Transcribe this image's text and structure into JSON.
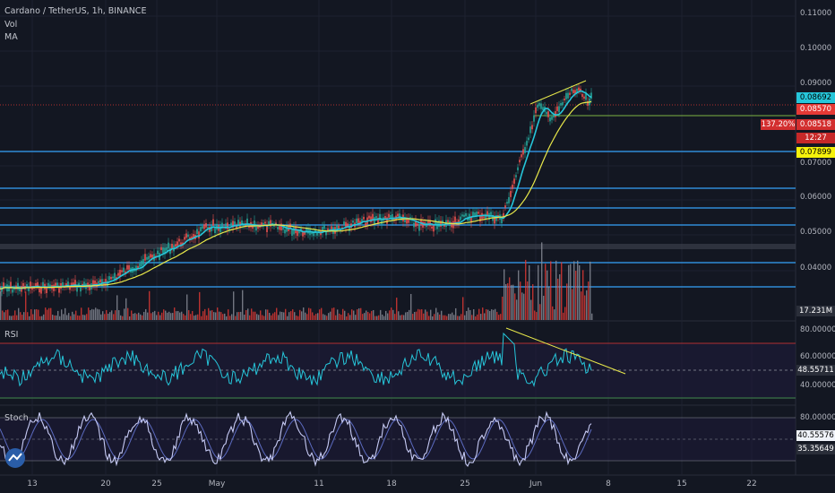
{
  "header": {
    "title": "Cardano / TetherUS, 1h, BINANCE",
    "vol": "Vol",
    "ma": "MA"
  },
  "panes": {
    "rsi": "RSI",
    "stoch": "Stoch"
  },
  "price_axis": [
    "0.11000",
    "0.10000",
    "0.09000",
    "0.07000",
    "0.06000",
    "0.05000",
    "0.04000"
  ],
  "rsi_axis": [
    "80.00000",
    "60.00000",
    "40.00000"
  ],
  "stoch_axis": [
    "80.00000"
  ],
  "badges": {
    "price_cyan": "0.08692",
    "price_red": "0.08570",
    "pct_label": "137.20%",
    "pct_price": "0.08518",
    "countdown": "12:27",
    "ma_yellow": "0.07899",
    "volume": "17.231M",
    "rsi_value": "48.55711",
    "stoch_k": "40.55576",
    "stoch_d": "35.35649"
  },
  "x_axis": [
    "13",
    "20",
    "25",
    "May",
    "11",
    "18",
    "25",
    "Jun",
    "8",
    "15",
    "22"
  ],
  "colors": {
    "bg": "#131722",
    "cyan": "#26c6da",
    "yellow": "#e8e84a",
    "red": "#e53935",
    "hline": "#2f8cd6",
    "purple": "#7e57c2"
  }
}
